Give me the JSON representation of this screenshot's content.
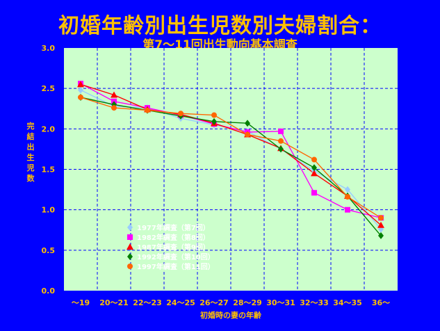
{
  "chart_data": {
    "type": "line",
    "title": "初婚年齢別出生児数別夫婦割合：",
    "subtitle": "第7～11回出生動向基本調査",
    "xlabel": "初婚時の妻の年齢",
    "ylabel": "完結出生児数",
    "categories": [
      "～19",
      "20～21",
      "22～23",
      "24～25",
      "26～27",
      "28～29",
      "30～31",
      "32～33",
      "34～35",
      "36～"
    ],
    "ylim": [
      0,
      3.0
    ],
    "yticks": [
      "0.0",
      "0.5",
      "1.0",
      "1.5",
      "2.0",
      "2.5",
      "3.0"
    ],
    "grid": true,
    "legend_position": "lower-left",
    "series": [
      {
        "name": "1977年調査（第7回）",
        "color": "#99CCFF",
        "marker": "diamond",
        "values": [
          2.48,
          2.28,
          2.26,
          2.13,
          2.05,
          1.97,
          1.75,
          1.48,
          1.25,
          0.76
        ]
      },
      {
        "name": "1982年調査（第8回）",
        "color": "#FF00FF",
        "marker": "square",
        "values": [
          2.56,
          2.34,
          2.26,
          2.17,
          2.06,
          1.96,
          1.97,
          1.21,
          1.0,
          0.9
        ]
      },
      {
        "name": "1987年調査（第9回）",
        "color": "#FF0000",
        "marker": "triangle",
        "values": [
          2.55,
          2.42,
          2.24,
          2.18,
          2.07,
          1.93,
          1.76,
          1.45,
          1.17,
          0.81
        ]
      },
      {
        "name": "1992年調査（第10回）",
        "color": "#008000",
        "marker": "diamond",
        "values": [
          2.39,
          2.3,
          2.23,
          2.16,
          2.09,
          2.07,
          1.75,
          1.52,
          1.17,
          0.68
        ]
      },
      {
        "name": "1997年調査（第11回）",
        "color": "#FF6600",
        "marker": "circle",
        "values": [
          2.39,
          2.26,
          2.23,
          2.19,
          2.17,
          1.93,
          1.85,
          1.62,
          1.16,
          0.9
        ]
      }
    ]
  }
}
